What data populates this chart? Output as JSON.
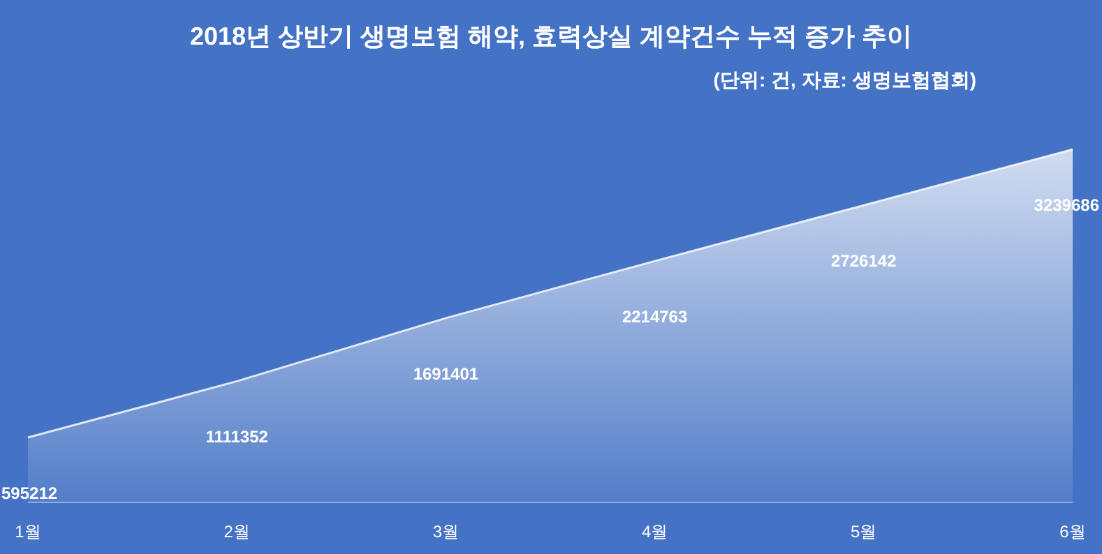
{
  "chart_data": {
    "type": "area",
    "title": "2018년 상반기 생명보험 해약, 효력상실 계약건수 누적 증가 추이",
    "subtitle": "(단위: 건, 자료: 생명보험협회)",
    "categories": [
      "1월",
      "2월",
      "3월",
      "4월",
      "5월",
      "6월"
    ],
    "values": [
      595212,
      1111352,
      1691401,
      2214763,
      2726142,
      3239686
    ],
    "color": "#ffffff",
    "data_labels": true
  }
}
